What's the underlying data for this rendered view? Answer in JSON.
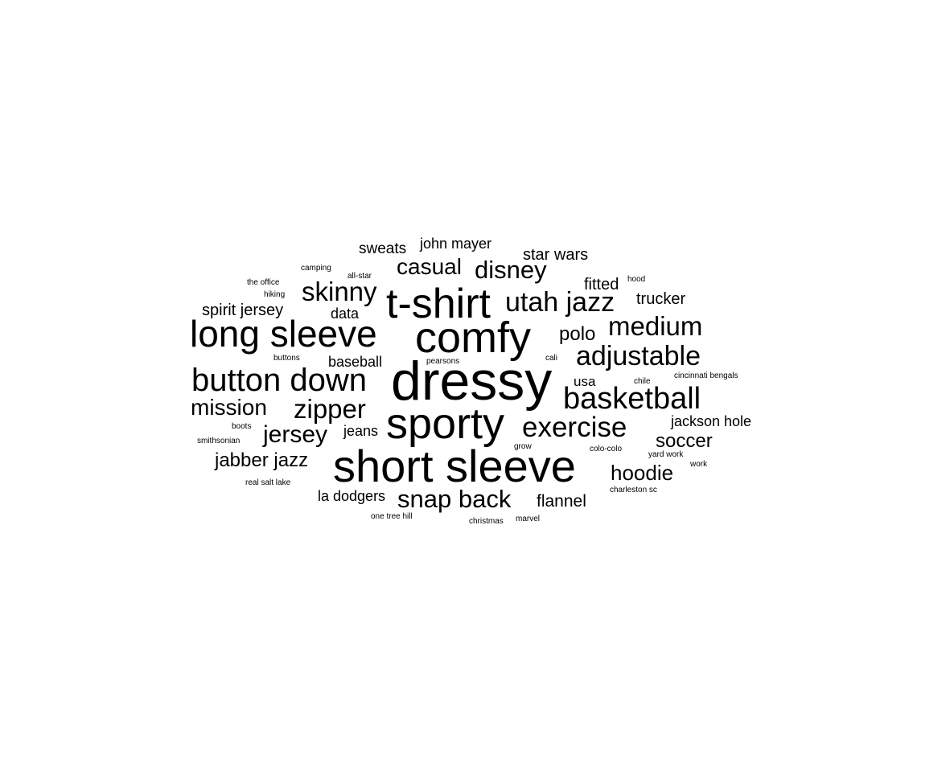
{
  "word_cloud": {
    "text_color": "#000000",
    "background": "#ffffff",
    "words": [
      {
        "text": "dressy"
      },
      {
        "text": "short sleeve"
      },
      {
        "text": "sporty"
      },
      {
        "text": "comfy"
      },
      {
        "text": "t-shirt"
      },
      {
        "text": "long sleeve"
      },
      {
        "text": "button down"
      },
      {
        "text": "basketball"
      },
      {
        "text": "exercise"
      },
      {
        "text": "adjustable"
      },
      {
        "text": "utah jazz"
      },
      {
        "text": "skinny"
      },
      {
        "text": "zipper"
      },
      {
        "text": "medium"
      },
      {
        "text": "snap back"
      },
      {
        "text": "disney"
      },
      {
        "text": "jersey"
      },
      {
        "text": "mission"
      },
      {
        "text": "casual"
      },
      {
        "text": "hoodie"
      },
      {
        "text": "jabber jazz"
      },
      {
        "text": "soccer"
      },
      {
        "text": "polo"
      },
      {
        "text": "star wars"
      },
      {
        "text": "flannel"
      },
      {
        "text": "spirit jersey"
      },
      {
        "text": "fitted"
      },
      {
        "text": "trucker"
      },
      {
        "text": "sweats"
      },
      {
        "text": "john mayer"
      },
      {
        "text": "jackson hole"
      },
      {
        "text": "la dodgers"
      },
      {
        "text": "baseball"
      },
      {
        "text": "data"
      },
      {
        "text": "jeans"
      },
      {
        "text": "usa"
      },
      {
        "text": "camping"
      },
      {
        "text": "all-star"
      },
      {
        "text": "the office"
      },
      {
        "text": "hiking"
      },
      {
        "text": "hood"
      },
      {
        "text": "buttons"
      },
      {
        "text": "pearsons"
      },
      {
        "text": "cali"
      },
      {
        "text": "cincinnati bengals"
      },
      {
        "text": "chile"
      },
      {
        "text": "boots"
      },
      {
        "text": "smithsonian"
      },
      {
        "text": "grow"
      },
      {
        "text": "colo-colo"
      },
      {
        "text": "yard work"
      },
      {
        "text": "work"
      },
      {
        "text": "real salt lake"
      },
      {
        "text": "charleston sc"
      },
      {
        "text": "one tree hill"
      },
      {
        "text": "christmas"
      },
      {
        "text": "marvel"
      }
    ]
  }
}
